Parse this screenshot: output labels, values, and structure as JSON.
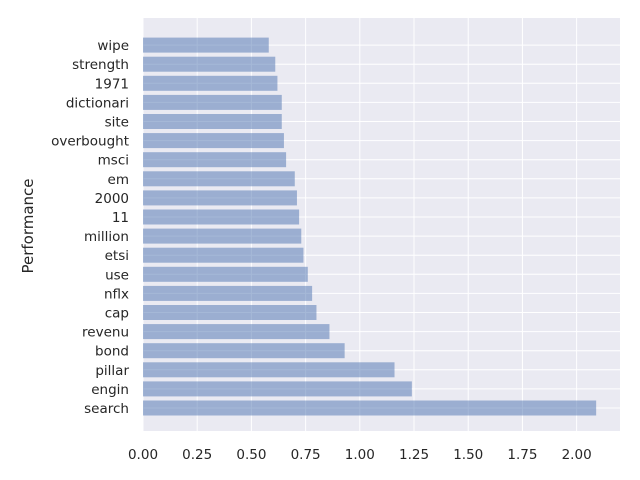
{
  "chart_data": {
    "type": "bar",
    "orientation": "horizontal",
    "categories": [
      "search",
      "engin",
      "pillar",
      "bond",
      "revenu",
      "cap",
      "nflx",
      "use",
      "etsi",
      "million",
      "11",
      "2000",
      "em",
      "msci",
      "overbought",
      "site",
      "dictionari",
      "1971",
      "strength",
      "wipe"
    ],
    "values": [
      2.09,
      1.24,
      1.16,
      0.93,
      0.86,
      0.8,
      0.78,
      0.76,
      0.74,
      0.73,
      0.72,
      0.71,
      0.7,
      0.66,
      0.65,
      0.64,
      0.64,
      0.62,
      0.61,
      0.58
    ],
    "title": "",
    "xlabel": "",
    "ylabel": "Performance",
    "xlim": [
      0,
      2.2
    ],
    "xticks": [
      "0.00",
      "0.25",
      "0.50",
      "0.75",
      "1.00",
      "1.25",
      "1.50",
      "1.75",
      "2.00"
    ],
    "grid": true,
    "bar_color": "#4c72b0",
    "background_color": "#eaeaf2"
  }
}
